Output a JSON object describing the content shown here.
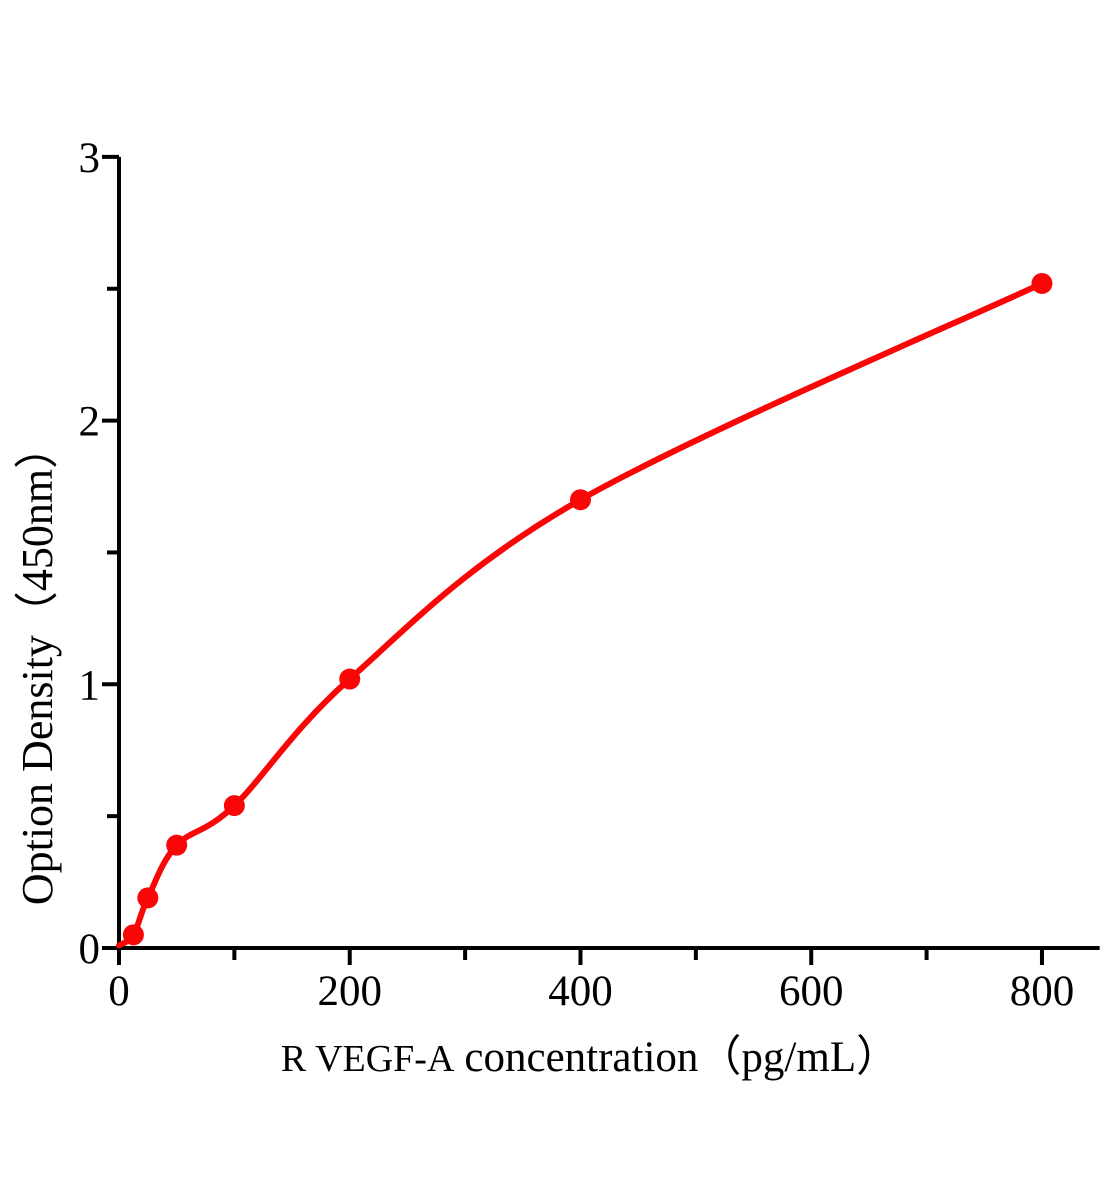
{
  "chart_data": {
    "type": "scatter",
    "title": "",
    "xlabel_prefix": "R VEGF-A",
    "xlabel_main": "concentration",
    "xlabel_unit": "（pg/mL）",
    "ylabel": "Option Density（450nm）",
    "x": [
      12.5,
      25,
      50,
      100,
      200,
      400,
      800
    ],
    "y": [
      0.05,
      0.19,
      0.39,
      0.54,
      1.02,
      1.7,
      2.52
    ],
    "curve_start": [
      0,
      0.01
    ],
    "x_ticks_major": [
      0,
      200,
      400,
      600,
      800
    ],
    "x_ticks_minor": [
      100,
      300,
      500,
      700
    ],
    "y_ticks_major": [
      0,
      1,
      2,
      3
    ],
    "y_ticks_minor": [
      0.5,
      1.5,
      2.5
    ],
    "xlim": [
      0,
      850
    ],
    "ylim": [
      0,
      3
    ],
    "grid": false,
    "legend": "none",
    "point_color": "#f90707",
    "line_color": "#f90707",
    "axis_color": "#000000"
  }
}
